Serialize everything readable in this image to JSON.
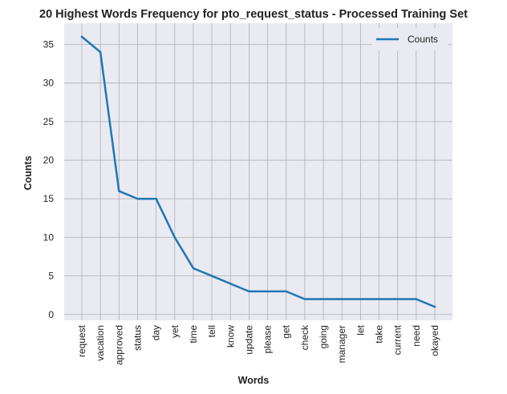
{
  "chart_data": {
    "type": "line",
    "title": "20 Highest Words Frequency for pto_request_status - Processed Training Set",
    "xlabel": "Words",
    "ylabel": "Counts",
    "categories": [
      "request",
      "vacation",
      "approved",
      "status",
      "day",
      "yet",
      "time",
      "tell",
      "know",
      "update",
      "please",
      "get",
      "check",
      "going",
      "manager",
      "let",
      "take",
      "current",
      "need",
      "okayed"
    ],
    "series": [
      {
        "name": "Counts",
        "values": [
          36,
          34,
          16,
          15,
          15,
          10,
          6,
          5,
          4,
          3,
          3,
          3,
          2,
          2,
          2,
          2,
          2,
          2,
          2,
          1
        ]
      }
    ],
    "yticks": [
      0,
      5,
      10,
      15,
      20,
      25,
      30,
      35
    ],
    "ylim": [
      -0.75,
      37.75
    ],
    "grid": true,
    "legend_position": "top-right",
    "colors": {
      "line": "#1f77b4",
      "background": "#eaeaf2",
      "grid": "#b0b0b0"
    }
  }
}
